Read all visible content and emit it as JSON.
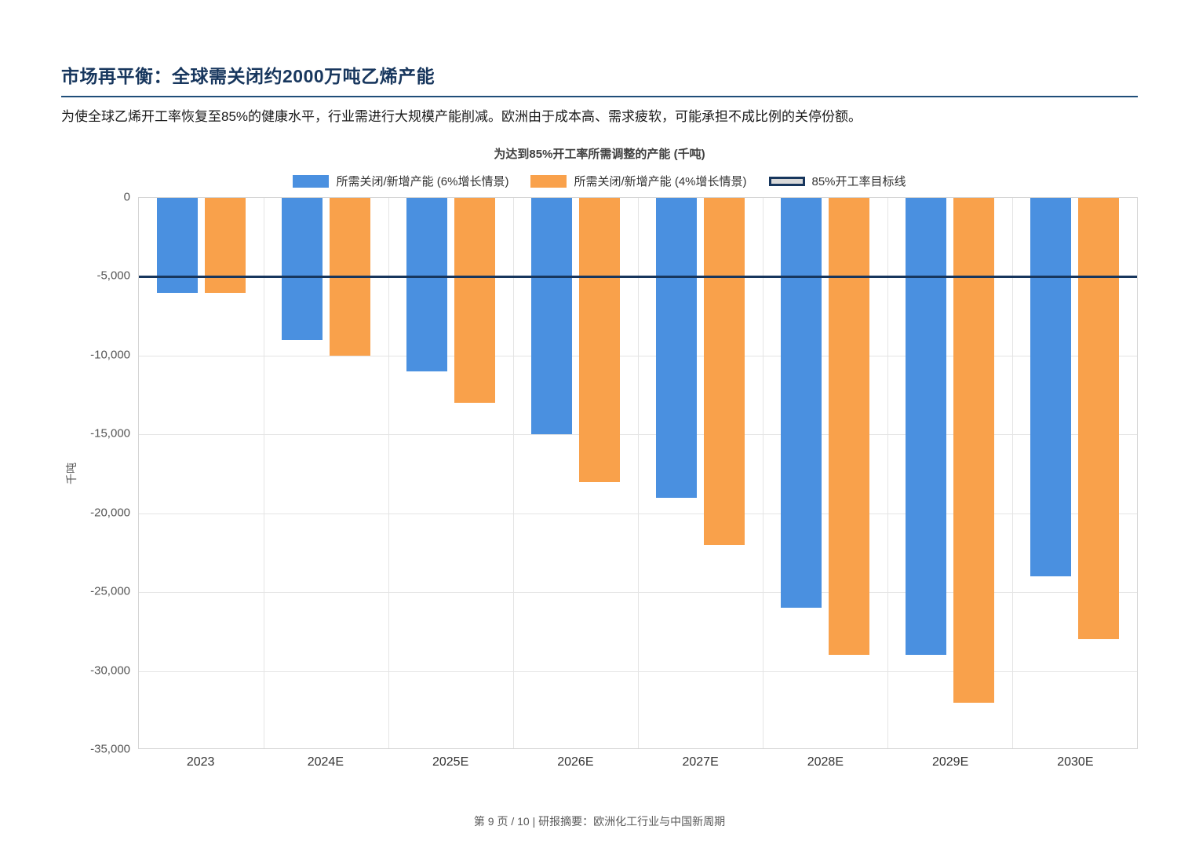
{
  "page": {
    "title": "市场再平衡：全球需关闭约2000万吨乙烯产能",
    "subtitle": "为使全球乙烯开工率恢复至85%的健康水平，行业需进行大规模产能削减。欧洲由于成本高、需求疲软，可能承担不成比例的关停份额。",
    "footer": "第 9 页 / 10 | 研报摘要：欧洲化工行业与中国新周期"
  },
  "chart_data": {
    "type": "bar",
    "title": "为达到85%开工率所需调整的产能 (千吨)",
    "xlabel": "",
    "ylabel": "千吨",
    "categories": [
      "2023",
      "2024E",
      "2025E",
      "2026E",
      "2027E",
      "2028E",
      "2029E",
      "2030E"
    ],
    "series": [
      {
        "name": "所需关闭/新增产能 (6%增长情景)",
        "color": "#4a90e0",
        "values": [
          -6000,
          -9000,
          -11000,
          -15000,
          -19000,
          -26000,
          -29000,
          -24000
        ]
      },
      {
        "name": "所需关闭/新增产能 (4%增长情景)",
        "color": "#f9a14b",
        "values": [
          -6000,
          -10000,
          -13000,
          -18000,
          -22000,
          -29000,
          -32000,
          -28000
        ]
      }
    ],
    "target_line": {
      "label": "85%开工率目标线",
      "value": -5000,
      "color": "#17365d"
    },
    "ylim": [
      -35000,
      0
    ],
    "ytick_step": 5000,
    "grid": true,
    "legend_position": "top"
  }
}
